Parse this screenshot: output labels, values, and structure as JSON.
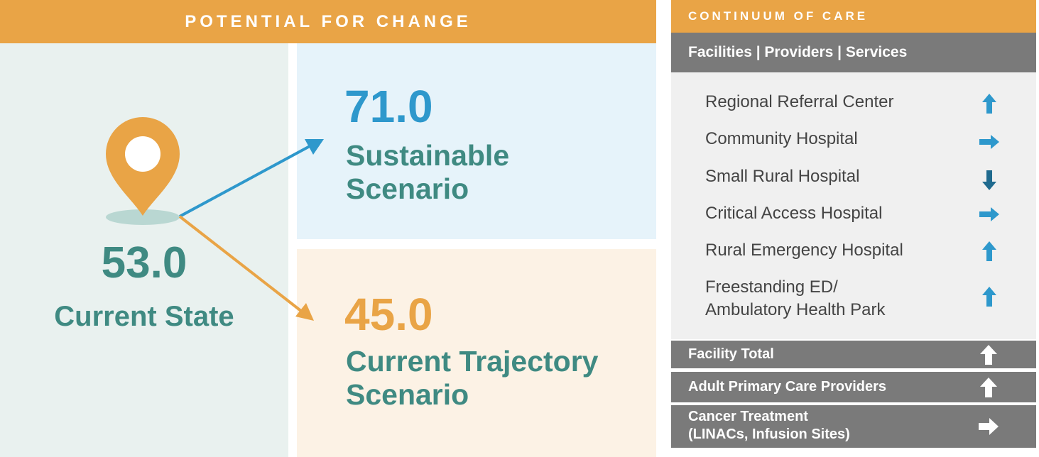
{
  "left": {
    "banner": "POTENTIAL FOR CHANGE",
    "current": {
      "value": "53.0",
      "label": "Current State"
    },
    "sustainable": {
      "value": "71.0",
      "label_line1": "Sustainable",
      "label_line2": "Scenario"
    },
    "trajectory": {
      "value": "45.0",
      "label_line1": "Current Trajectory",
      "label_line2": "Scenario"
    },
    "icons": {
      "pin": "map-pin-icon",
      "up_arrow": "arrow-up-right",
      "down_arrow": "arrow-down-right"
    }
  },
  "right": {
    "header": "CONTINUUM OF CARE",
    "subheader": "Facilities | Providers | Services",
    "items": [
      {
        "label": "Regional Referral Center",
        "direction": "up"
      },
      {
        "label": "Community Hospital",
        "direction": "right"
      },
      {
        "label": "Small Rural Hospital",
        "direction": "down"
      },
      {
        "label": "Critical Access Hospital",
        "direction": "right"
      },
      {
        "label": "Rural Emergency Hospital",
        "direction": "up"
      },
      {
        "label_line1": "Freestanding ED/",
        "label_line2": "Ambulatory Health Park",
        "direction": "up"
      }
    ],
    "summary": [
      {
        "label": "Facility Total",
        "direction": "up"
      },
      {
        "label": "Adult Primary Care Providers",
        "direction": "up"
      },
      {
        "label_line1": "Cancer Treatment",
        "label_line2": "(LINACs, Infusion Sites)",
        "direction": "right"
      }
    ]
  },
  "colors": {
    "orange": "#e9a446",
    "teal": "#3f8a82",
    "blue": "#2e98cc",
    "gray": "#7a7a7a"
  }
}
